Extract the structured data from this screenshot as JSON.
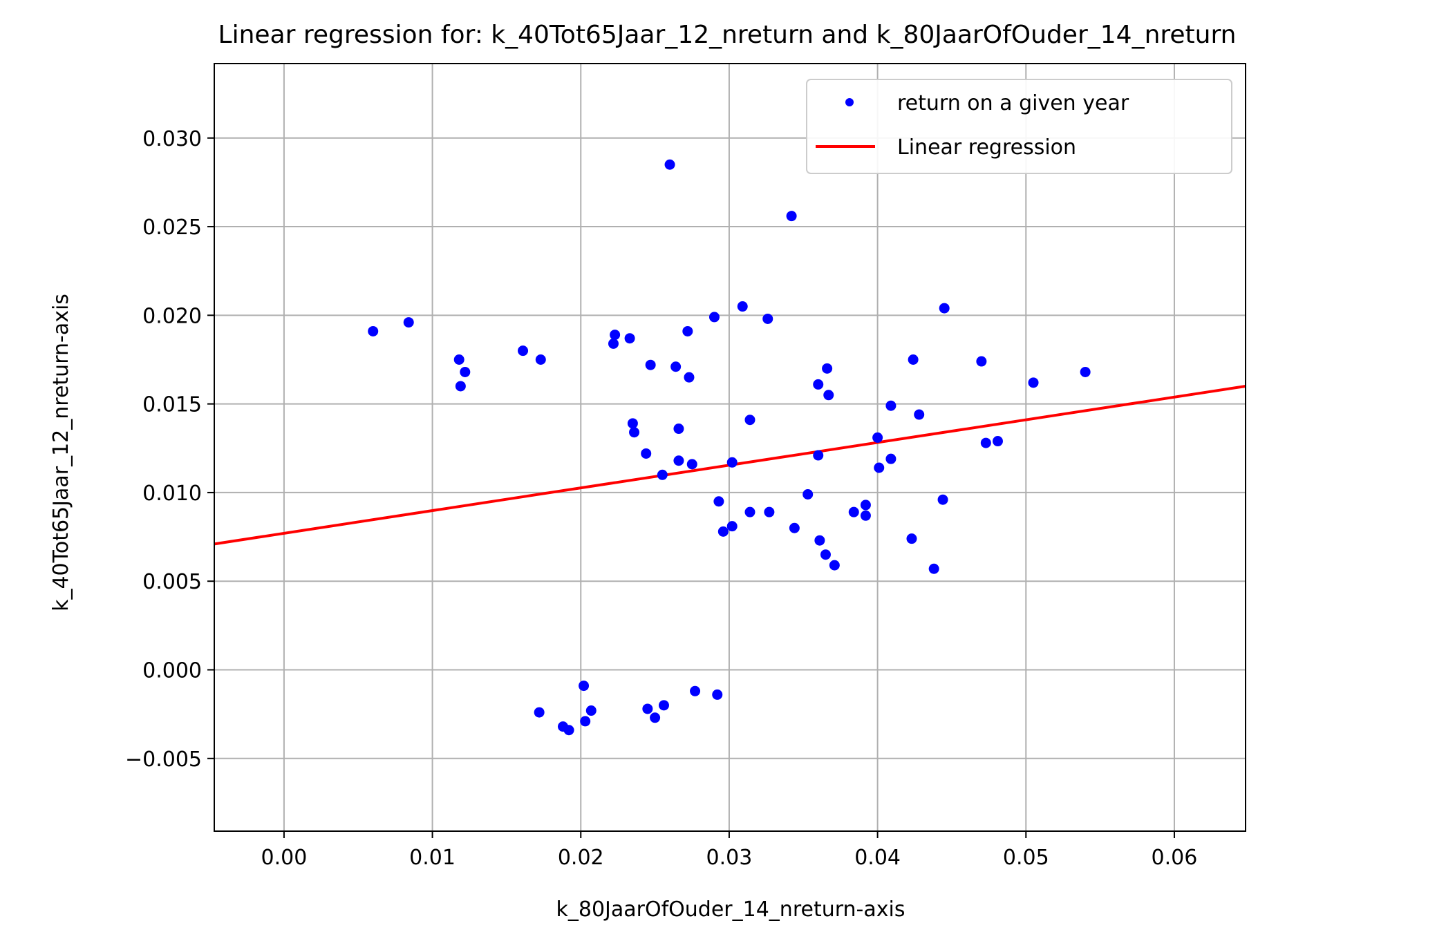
{
  "chart_data": {
    "type": "scatter",
    "title": "Linear regression for: k_40Tot65Jaar_12_nreturn and k_80JaarOfOuder_14_nreturn",
    "xlabel": "k_80JaarOfOuder_14_nreturn-axis",
    "ylabel": "k_40Tot65Jaar_12_nreturn-axis",
    "xlim": [
      -0.0047,
      0.0648
    ],
    "ylim": [
      -0.0091,
      0.0342
    ],
    "grid": true,
    "legend_position": "top-right",
    "x_ticks": [
      {
        "value": 0.0,
        "label": "0.00"
      },
      {
        "value": 0.01,
        "label": "0.01"
      },
      {
        "value": 0.02,
        "label": "0.02"
      },
      {
        "value": 0.03,
        "label": "0.03"
      },
      {
        "value": 0.04,
        "label": "0.04"
      },
      {
        "value": 0.05,
        "label": "0.05"
      },
      {
        "value": 0.06,
        "label": "0.06"
      }
    ],
    "y_ticks": [
      {
        "value": -0.005,
        "label": "−0.005"
      },
      {
        "value": 0.0,
        "label": "0.000"
      },
      {
        "value": 0.005,
        "label": "0.005"
      },
      {
        "value": 0.01,
        "label": "0.010"
      },
      {
        "value": 0.015,
        "label": "0.015"
      },
      {
        "value": 0.02,
        "label": "0.020"
      },
      {
        "value": 0.025,
        "label": "0.025"
      },
      {
        "value": 0.03,
        "label": "0.030"
      }
    ],
    "series": [
      {
        "name": "return on a given year",
        "kind": "scatter",
        "color": "#0000ff",
        "points": [
          [
            0.006,
            0.0191
          ],
          [
            0.0084,
            0.0196
          ],
          [
            0.0118,
            0.0175
          ],
          [
            0.0119,
            0.016
          ],
          [
            0.0122,
            0.0168
          ],
          [
            0.0161,
            0.018
          ],
          [
            0.0173,
            0.0175
          ],
          [
            0.0223,
            0.0189
          ],
          [
            0.0222,
            0.0184
          ],
          [
            0.0233,
            0.0187
          ],
          [
            0.0247,
            0.0172
          ],
          [
            0.0264,
            0.0171
          ],
          [
            0.0273,
            0.0165
          ],
          [
            0.0272,
            0.0191
          ],
          [
            0.029,
            0.0199
          ],
          [
            0.026,
            0.0285
          ],
          [
            0.0309,
            0.0205
          ],
          [
            0.0326,
            0.0198
          ],
          [
            0.0342,
            0.0256
          ],
          [
            0.0235,
            0.0139
          ],
          [
            0.0236,
            0.0134
          ],
          [
            0.0244,
            0.0122
          ],
          [
            0.0266,
            0.0136
          ],
          [
            0.0255,
            0.011
          ],
          [
            0.0266,
            0.0118
          ],
          [
            0.0275,
            0.0116
          ],
          [
            0.0314,
            0.0141
          ],
          [
            0.0302,
            0.0117
          ],
          [
            0.0293,
            0.0095
          ],
          [
            0.0296,
            0.0078
          ],
          [
            0.0302,
            0.0081
          ],
          [
            0.0314,
            0.0089
          ],
          [
            0.0327,
            0.0089
          ],
          [
            0.0344,
            0.008
          ],
          [
            0.0353,
            0.0099
          ],
          [
            0.036,
            0.0161
          ],
          [
            0.0366,
            0.017
          ],
          [
            0.0367,
            0.0155
          ],
          [
            0.036,
            0.0121
          ],
          [
            0.0361,
            0.0073
          ],
          [
            0.0365,
            0.0065
          ],
          [
            0.0371,
            0.0059
          ],
          [
            0.0384,
            0.0089
          ],
          [
            0.0392,
            0.0093
          ],
          [
            0.0392,
            0.0087
          ],
          [
            0.04,
            0.0131
          ],
          [
            0.0401,
            0.0114
          ],
          [
            0.0409,
            0.0149
          ],
          [
            0.0409,
            0.0119
          ],
          [
            0.0424,
            0.0175
          ],
          [
            0.0428,
            0.0144
          ],
          [
            0.0423,
            0.0074
          ],
          [
            0.0438,
            0.0057
          ],
          [
            0.0445,
            0.0204
          ],
          [
            0.0444,
            0.0096
          ],
          [
            0.047,
            0.0174
          ],
          [
            0.0473,
            0.0128
          ],
          [
            0.0481,
            0.0129
          ],
          [
            0.0505,
            0.0162
          ],
          [
            0.054,
            0.0168
          ],
          [
            0.0172,
            -0.0024
          ],
          [
            0.0188,
            -0.0032
          ],
          [
            0.0192,
            -0.0034
          ],
          [
            0.0202,
            -0.0009
          ],
          [
            0.0203,
            -0.0029
          ],
          [
            0.0207,
            -0.0023
          ],
          [
            0.0245,
            -0.0022
          ],
          [
            0.025,
            -0.0027
          ],
          [
            0.0256,
            -0.002
          ],
          [
            0.0277,
            -0.0012
          ],
          [
            0.0292,
            -0.0014
          ]
        ]
      },
      {
        "name": "Linear regression",
        "kind": "line",
        "color": "#ff0000",
        "points": [
          [
            -0.0047,
            0.0071
          ],
          [
            0.0648,
            0.016
          ]
        ]
      }
    ]
  }
}
